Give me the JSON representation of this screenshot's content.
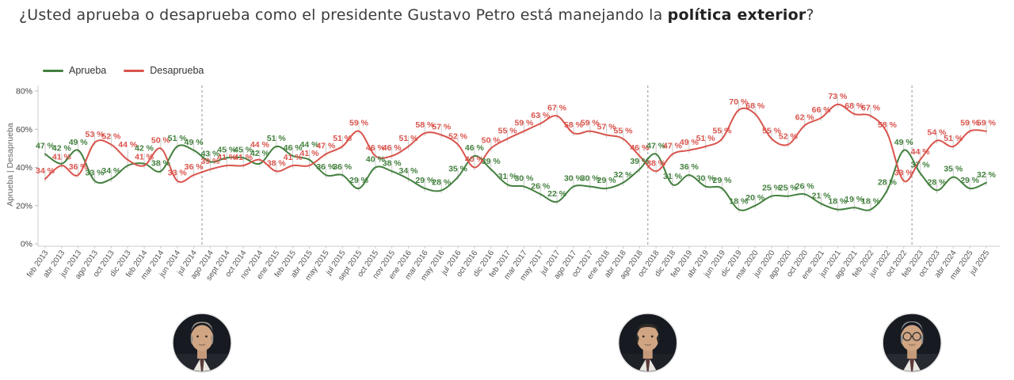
{
  "title": {
    "prefix": "¿Usted aprueba o desaprueba como el presidente Gustavo Petro está manejando la ",
    "bold": "política exterior",
    "suffix": "?"
  },
  "legend": {
    "items": [
      {
        "label": "Aprueba",
        "color": "#43803e"
      },
      {
        "label": "Desaprueba",
        "color": "#d9544d"
      }
    ]
  },
  "y_axis": {
    "title": "Aprueba | Desaprueba",
    "tick_labels": [
      "0%",
      "20%",
      "40%",
      "60%",
      "80%"
    ],
    "tick_values": [
      0,
      20,
      40,
      60,
      80
    ]
  },
  "chart_data": {
    "type": "line",
    "title": "¿Usted aprueba o desaprueba como el presidente Gustavo Petro está manejando la política exterior?",
    "ylabel": "Aprueba | Desaprueba",
    "ylim": [
      0,
      80
    ],
    "grid": false,
    "legend_position": "top-left",
    "label_suffix": " %",
    "x": [
      "feb 2013",
      "abr 2013",
      "jun 2013",
      "ago 2013",
      "oct 2013",
      "dic 2013",
      "feb 2014",
      "mar 2014",
      "jun 2014",
      "jul 2014",
      "ago 2014",
      "sept 2014",
      "oct 2014",
      "nov 2014",
      "ene 2015",
      "feb 2015",
      "abr 2015",
      "may 2015",
      "jul 2015",
      "sept 2015",
      "oct 2015",
      "nov 2015",
      "ene 2016",
      "mar 2016",
      "may 2016",
      "jul 2016",
      "oct 2016",
      "dic 2016",
      "feb 2017",
      "mar 2017",
      "may 2017",
      "jul 2017",
      "ago 2017",
      "oct 2017",
      "ene 2018",
      "abr 2018",
      "ago 2018",
      "oct 2018",
      "dic 2018",
      "feb 2019",
      "abr 2019",
      "jun 2019",
      "dic 2019",
      "mar 2020",
      "jun 2020",
      "ago 2020",
      "oct 2020",
      "ene 2021",
      "jun 2021",
      "ago 2021",
      "feb 2022",
      "jun 2022",
      "oct 2022",
      "feb 2023",
      "oct 2023",
      "abr 2024",
      "mar 2025",
      "jul 2025"
    ],
    "series": [
      {
        "name": "Aprueba",
        "color": "#43803e",
        "values": [
          47,
          42,
          49,
          33,
          34,
          41,
          42,
          38,
          51,
          49,
          43,
          45,
          45,
          42,
          51,
          46,
          44,
          36,
          36,
          29,
          40,
          38,
          34,
          29,
          28,
          35,
          46,
          39,
          31,
          30,
          26,
          22,
          30,
          30,
          29,
          32,
          39,
          47,
          31,
          36,
          30,
          29,
          18,
          20,
          25,
          25,
          26,
          21,
          18,
          19,
          18,
          28,
          49,
          37,
          28,
          35,
          29,
          32
        ]
      },
      {
        "name": "Desaprueba",
        "color": "#d9544d",
        "values": [
          34,
          41,
          36,
          53,
          52,
          44,
          41,
          50,
          33,
          36,
          39,
          41,
          41,
          44,
          38,
          41,
          41,
          47,
          51,
          59,
          46,
          46,
          51,
          58,
          57,
          52,
          40,
          50,
          55,
          59,
          63,
          67,
          58,
          59,
          57,
          55,
          46,
          38,
          47,
          49,
          51,
          55,
          70,
          68,
          55,
          52,
          62,
          66,
          73,
          68,
          67,
          58,
          33,
          44,
          54,
          51,
          59,
          59
        ]
      }
    ],
    "hidden_labels": [
      {
        "series": "Aprueba",
        "index": 5
      }
    ],
    "dividers_after_index": [
      9,
      36,
      52
    ]
  },
  "photos": [
    {
      "id": "santos",
      "divider": 0
    },
    {
      "id": "duque",
      "divider": 1
    },
    {
      "id": "petro",
      "divider": 2
    }
  ]
}
